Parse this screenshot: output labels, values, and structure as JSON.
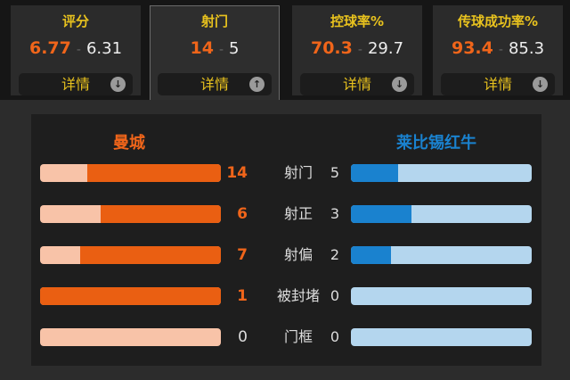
{
  "summary_cards": [
    {
      "title": "评分",
      "home": "6.77",
      "away": "6.31",
      "detail": "详情",
      "icon": "arrow-down-icon",
      "selected": false
    },
    {
      "title": "射门",
      "home": "14",
      "away": "5",
      "detail": "详情",
      "icon": "arrow-up-icon",
      "selected": true
    },
    {
      "title": "控球率%",
      "home": "70.3",
      "away": "29.7",
      "detail": "详情",
      "icon": "arrow-down-icon",
      "selected": false
    },
    {
      "title": "传球成功率%",
      "home": "93.4",
      "away": "85.3",
      "detail": "详情",
      "icon": "arrow-down-icon",
      "selected": false
    }
  ],
  "separator": "-",
  "home_team": {
    "name": "曼城",
    "color": "#ea5f12"
  },
  "away_team": {
    "name": "莱比锡红牛",
    "color": "#1a82cf"
  },
  "stats": [
    {
      "label": "射门",
      "home": "14",
      "away": "5"
    },
    {
      "label": "射正",
      "home": "6",
      "away": "3"
    },
    {
      "label": "射偏",
      "home": "7",
      "away": "2"
    },
    {
      "label": "被封堵",
      "home": "1",
      "away": "0"
    },
    {
      "label": "门框",
      "home": "0",
      "away": "0"
    }
  ]
}
